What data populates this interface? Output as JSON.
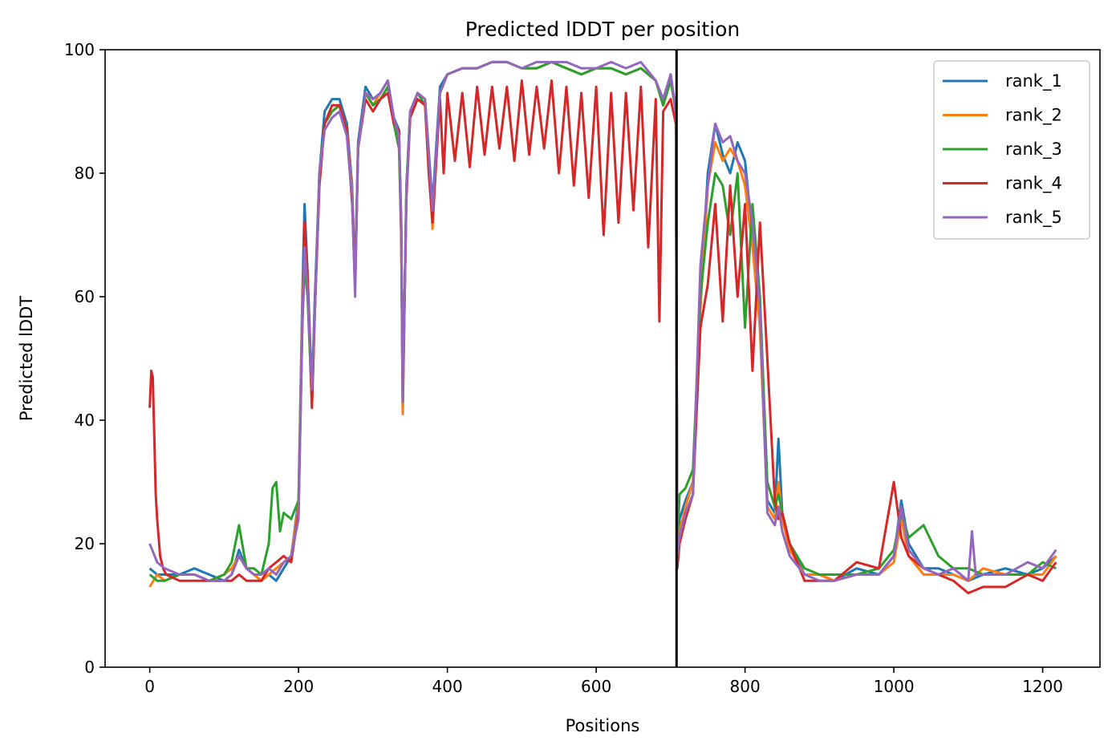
{
  "chart_data": {
    "type": "line",
    "title": "Predicted lDDT per position",
    "xlabel": "Positions",
    "ylabel": "Predicted lDDT",
    "xlim": [
      -60,
      1277
    ],
    "ylim": [
      0,
      100
    ],
    "xticks": [
      0,
      200,
      400,
      600,
      800,
      1000,
      1200
    ],
    "yticks": [
      0,
      20,
      40,
      60,
      80,
      100
    ],
    "grid": false,
    "legend_position": "top-right",
    "vline_x": 708,
    "series": [
      {
        "name": "rank_1",
        "color": "#1f77b4",
        "x": [
          0,
          10,
          20,
          40,
          60,
          80,
          100,
          110,
          120,
          130,
          140,
          150,
          160,
          170,
          180,
          190,
          200,
          205,
          208,
          212,
          218,
          222,
          228,
          235,
          245,
          255,
          265,
          272,
          276,
          280,
          290,
          300,
          310,
          320,
          328,
          335,
          338,
          340,
          345,
          350,
          360,
          370,
          380,
          390,
          400,
          420,
          440,
          460,
          480,
          500,
          520,
          540,
          560,
          580,
          600,
          620,
          640,
          660,
          680,
          690,
          700,
          707,
          709,
          712,
          720,
          730,
          740,
          750,
          760,
          770,
          780,
          790,
          800,
          810,
          820,
          830,
          840,
          845,
          850,
          860,
          880,
          900,
          920,
          950,
          980,
          1000,
          1010,
          1020,
          1040,
          1060,
          1080,
          1100,
          1120,
          1150,
          1180,
          1200,
          1218
        ],
        "y": [
          16,
          15,
          15,
          15,
          16,
          15,
          14,
          15,
          19,
          16,
          15,
          14,
          15,
          14,
          16,
          18,
          27,
          60,
          75,
          64,
          45,
          60,
          80,
          90,
          92,
          92,
          88,
          78,
          63,
          85,
          94,
          92,
          93,
          95,
          89,
          87,
          72,
          41,
          78,
          90,
          93,
          92,
          75,
          94,
          96,
          97,
          97,
          98,
          98,
          97,
          97,
          98,
          97,
          96,
          97,
          97,
          96,
          97,
          95,
          91,
          96,
          90,
          20,
          24,
          27,
          30,
          60,
          80,
          88,
          83,
          80,
          85,
          82,
          70,
          55,
          27,
          25,
          37,
          25,
          20,
          15,
          15,
          14,
          16,
          15,
          18,
          27,
          20,
          16,
          16,
          15,
          14,
          15,
          16,
          15,
          16,
          18
        ]
      },
      {
        "name": "rank_2",
        "color": "#ff7f0e",
        "x": [
          0,
          10,
          20,
          40,
          60,
          80,
          100,
          110,
          120,
          130,
          140,
          150,
          160,
          170,
          180,
          190,
          200,
          205,
          208,
          212,
          218,
          222,
          228,
          235,
          245,
          255,
          265,
          272,
          276,
          280,
          290,
          300,
          310,
          320,
          328,
          335,
          338,
          340,
          345,
          350,
          360,
          370,
          380,
          390,
          400,
          420,
          440,
          460,
          480,
          500,
          520,
          540,
          560,
          580,
          600,
          620,
          640,
          660,
          680,
          690,
          700,
          707,
          709,
          712,
          720,
          730,
          740,
          750,
          760,
          770,
          780,
          790,
          800,
          810,
          820,
          830,
          840,
          845,
          850,
          860,
          880,
          900,
          920,
          950,
          980,
          1000,
          1010,
          1020,
          1040,
          1060,
          1080,
          1100,
          1120,
          1150,
          1180,
          1200,
          1218
        ],
        "y": [
          13,
          15,
          14,
          15,
          15,
          14,
          15,
          16,
          18,
          16,
          15,
          14,
          15,
          16,
          17,
          18,
          26,
          58,
          70,
          62,
          42,
          58,
          78,
          88,
          90,
          91,
          87,
          77,
          62,
          84,
          93,
          91,
          93,
          95,
          88,
          86,
          70,
          41,
          77,
          90,
          93,
          92,
          71,
          93,
          96,
          97,
          97,
          98,
          98,
          97,
          97,
          98,
          97,
          96,
          97,
          97,
          96,
          97,
          95,
          91,
          95,
          90,
          18,
          22,
          26,
          30,
          58,
          78,
          85,
          82,
          84,
          82,
          78,
          68,
          55,
          26,
          24,
          30,
          24,
          19,
          15,
          15,
          14,
          15,
          15,
          17,
          24,
          18,
          15,
          15,
          15,
          14,
          16,
          15,
          15,
          15,
          18
        ]
      },
      {
        "name": "rank_3",
        "color": "#2ca02c",
        "x": [
          0,
          10,
          20,
          40,
          60,
          80,
          100,
          110,
          120,
          130,
          140,
          150,
          160,
          165,
          170,
          175,
          180,
          190,
          200,
          205,
          208,
          212,
          218,
          222,
          228,
          235,
          245,
          255,
          265,
          272,
          276,
          280,
          290,
          300,
          310,
          320,
          328,
          335,
          338,
          340,
          345,
          350,
          360,
          370,
          380,
          390,
          400,
          420,
          440,
          460,
          480,
          500,
          520,
          540,
          560,
          580,
          600,
          620,
          640,
          660,
          680,
          690,
          700,
          707,
          709,
          712,
          720,
          730,
          740,
          750,
          760,
          770,
          780,
          790,
          800,
          810,
          820,
          830,
          840,
          845,
          850,
          860,
          880,
          900,
          920,
          950,
          980,
          1000,
          1010,
          1020,
          1030,
          1040,
          1060,
          1080,
          1100,
          1120,
          1150,
          1180,
          1200,
          1218
        ],
        "y": [
          15,
          14,
          14,
          15,
          15,
          14,
          15,
          17,
          23,
          16,
          16,
          15,
          20,
          29,
          30,
          22,
          25,
          24,
          27,
          55,
          65,
          60,
          43,
          58,
          80,
          88,
          90,
          91,
          86,
          76,
          62,
          84,
          93,
          91,
          92,
          94,
          88,
          84,
          70,
          43,
          78,
          90,
          93,
          91,
          73,
          93,
          96,
          97,
          97,
          98,
          98,
          97,
          97,
          98,
          97,
          96,
          97,
          97,
          96,
          97,
          95,
          91,
          95,
          90,
          20,
          28,
          29,
          32,
          60,
          72,
          80,
          78,
          70,
          80,
          55,
          75,
          60,
          30,
          26,
          28,
          25,
          20,
          16,
          15,
          15,
          15,
          16,
          19,
          25,
          21,
          22,
          23,
          18,
          16,
          16,
          15,
          15,
          15,
          17,
          16
        ]
      },
      {
        "name": "rank_4",
        "color": "#d62728",
        "x": [
          0,
          2,
          4,
          6,
          8,
          10,
          14,
          18,
          22,
          40,
          60,
          80,
          100,
          110,
          120,
          130,
          140,
          150,
          160,
          170,
          180,
          190,
          200,
          205,
          208,
          212,
          218,
          222,
          228,
          235,
          245,
          255,
          265,
          272,
          276,
          280,
          290,
          300,
          310,
          320,
          328,
          335,
          338,
          340,
          345,
          350,
          360,
          370,
          375,
          380,
          390,
          395,
          400,
          410,
          420,
          430,
          440,
          450,
          460,
          470,
          480,
          490,
          500,
          510,
          520,
          530,
          540,
          550,
          560,
          570,
          580,
          590,
          600,
          610,
          620,
          630,
          640,
          650,
          660,
          670,
          680,
          685,
          690,
          700,
          707,
          709,
          712,
          720,
          730,
          740,
          750,
          760,
          770,
          780,
          790,
          800,
          810,
          820,
          830,
          840,
          845,
          850,
          860,
          880,
          900,
          920,
          950,
          980,
          1000,
          1010,
          1020,
          1040,
          1060,
          1080,
          1100,
          1120,
          1150,
          1180,
          1200,
          1218
        ],
        "y": [
          42,
          48,
          47,
          38,
          28,
          24,
          18,
          16,
          15,
          14,
          14,
          14,
          14,
          14,
          15,
          14,
          14,
          14,
          16,
          17,
          18,
          17,
          25,
          55,
          72,
          64,
          42,
          58,
          78,
          88,
          91,
          91,
          87,
          75,
          62,
          84,
          92,
          90,
          92,
          93,
          88,
          87,
          70,
          43,
          76,
          89,
          92,
          91,
          80,
          72,
          92,
          80,
          93,
          82,
          93,
          81,
          94,
          83,
          94,
          84,
          94,
          82,
          95,
          83,
          94,
          84,
          95,
          80,
          94,
          78,
          93,
          76,
          94,
          70,
          93,
          72,
          93,
          74,
          94,
          68,
          92,
          56,
          90,
          92,
          88,
          16,
          20,
          24,
          28,
          55,
          62,
          75,
          56,
          78,
          60,
          75,
          48,
          72,
          50,
          27,
          24,
          25,
          20,
          14,
          14,
          14,
          17,
          16,
          30,
          21,
          18,
          16,
          15,
          14,
          12,
          13,
          13,
          15,
          14,
          17
        ]
      },
      {
        "name": "rank_5",
        "color": "#9467bd",
        "x": [
          0,
          10,
          20,
          40,
          60,
          80,
          100,
          110,
          120,
          130,
          140,
          150,
          160,
          170,
          180,
          190,
          200,
          205,
          208,
          212,
          218,
          222,
          228,
          235,
          245,
          255,
          265,
          272,
          276,
          280,
          290,
          300,
          310,
          320,
          328,
          335,
          338,
          340,
          345,
          350,
          360,
          370,
          380,
          390,
          400,
          420,
          440,
          460,
          480,
          500,
          520,
          540,
          560,
          580,
          600,
          620,
          640,
          660,
          680,
          690,
          700,
          707,
          709,
          712,
          720,
          730,
          740,
          750,
          760,
          770,
          780,
          790,
          800,
          810,
          820,
          830,
          840,
          845,
          850,
          860,
          880,
          900,
          920,
          950,
          980,
          1000,
          1010,
          1020,
          1040,
          1060,
          1080,
          1100,
          1105,
          1110,
          1120,
          1150,
          1180,
          1200,
          1218
        ],
        "y": [
          20,
          17,
          16,
          15,
          15,
          14,
          14,
          15,
          18,
          16,
          15,
          15,
          16,
          15,
          17,
          18,
          24,
          56,
          68,
          61,
          45,
          58,
          80,
          87,
          89,
          90,
          86,
          76,
          60,
          84,
          93,
          92,
          93,
          95,
          89,
          86,
          72,
          43,
          77,
          90,
          93,
          92,
          74,
          93,
          96,
          97,
          97,
          98,
          98,
          97,
          98,
          98,
          98,
          97,
          97,
          98,
          97,
          98,
          95,
          92,
          96,
          90,
          18,
          21,
          25,
          28,
          65,
          78,
          88,
          85,
          86,
          82,
          80,
          72,
          58,
          25,
          23,
          26,
          22,
          18,
          15,
          14,
          14,
          15,
          15,
          18,
          26,
          19,
          16,
          15,
          16,
          14,
          22,
          15,
          15,
          15,
          17,
          16,
          19
        ]
      }
    ]
  }
}
